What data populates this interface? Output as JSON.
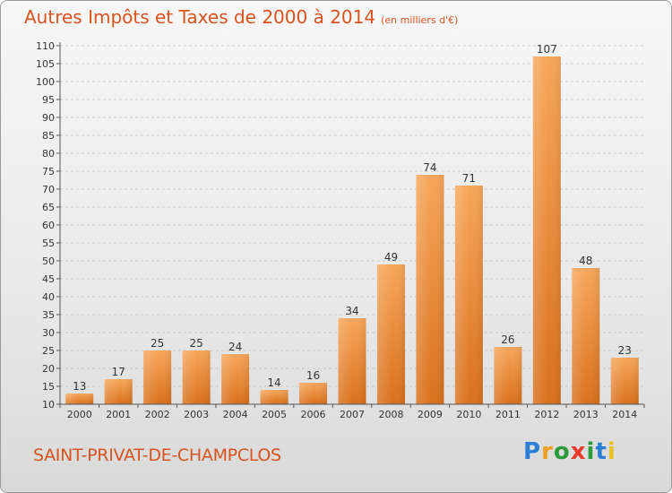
{
  "title": "Autres Impôts et Taxes de 2000 à 2014",
  "subtitle": "(en milliers d'€)",
  "commune": "SAINT-PRIVAT-DE-CHAMPCLOS",
  "logo": {
    "letters": [
      "P",
      "r",
      "o",
      "x",
      "i",
      "t",
      "i"
    ],
    "colors": [
      "#2a7fd4",
      "#f0a020",
      "#2a9a3a",
      "#e83a2a",
      "#2a9a3a",
      "#2a7fd4",
      "#e8c020"
    ]
  },
  "colors": {
    "accent": "#d9531e",
    "bar_light": "#f7a65a",
    "bar_dark": "#d9701c"
  },
  "chart_data": {
    "type": "bar",
    "categories": [
      "2000",
      "2001",
      "2002",
      "2003",
      "2004",
      "2005",
      "2006",
      "2007",
      "2008",
      "2009",
      "2010",
      "2011",
      "2012",
      "2013",
      "2014"
    ],
    "values": [
      13,
      17,
      25,
      25,
      24,
      14,
      16,
      34,
      49,
      74,
      71,
      26,
      107,
      48,
      23
    ],
    "ylim": [
      10,
      110
    ],
    "yticks": [
      10,
      15,
      20,
      25,
      30,
      35,
      40,
      45,
      50,
      55,
      60,
      65,
      70,
      75,
      80,
      85,
      90,
      95,
      100,
      105,
      110
    ],
    "grid": true,
    "data_labels": true
  }
}
